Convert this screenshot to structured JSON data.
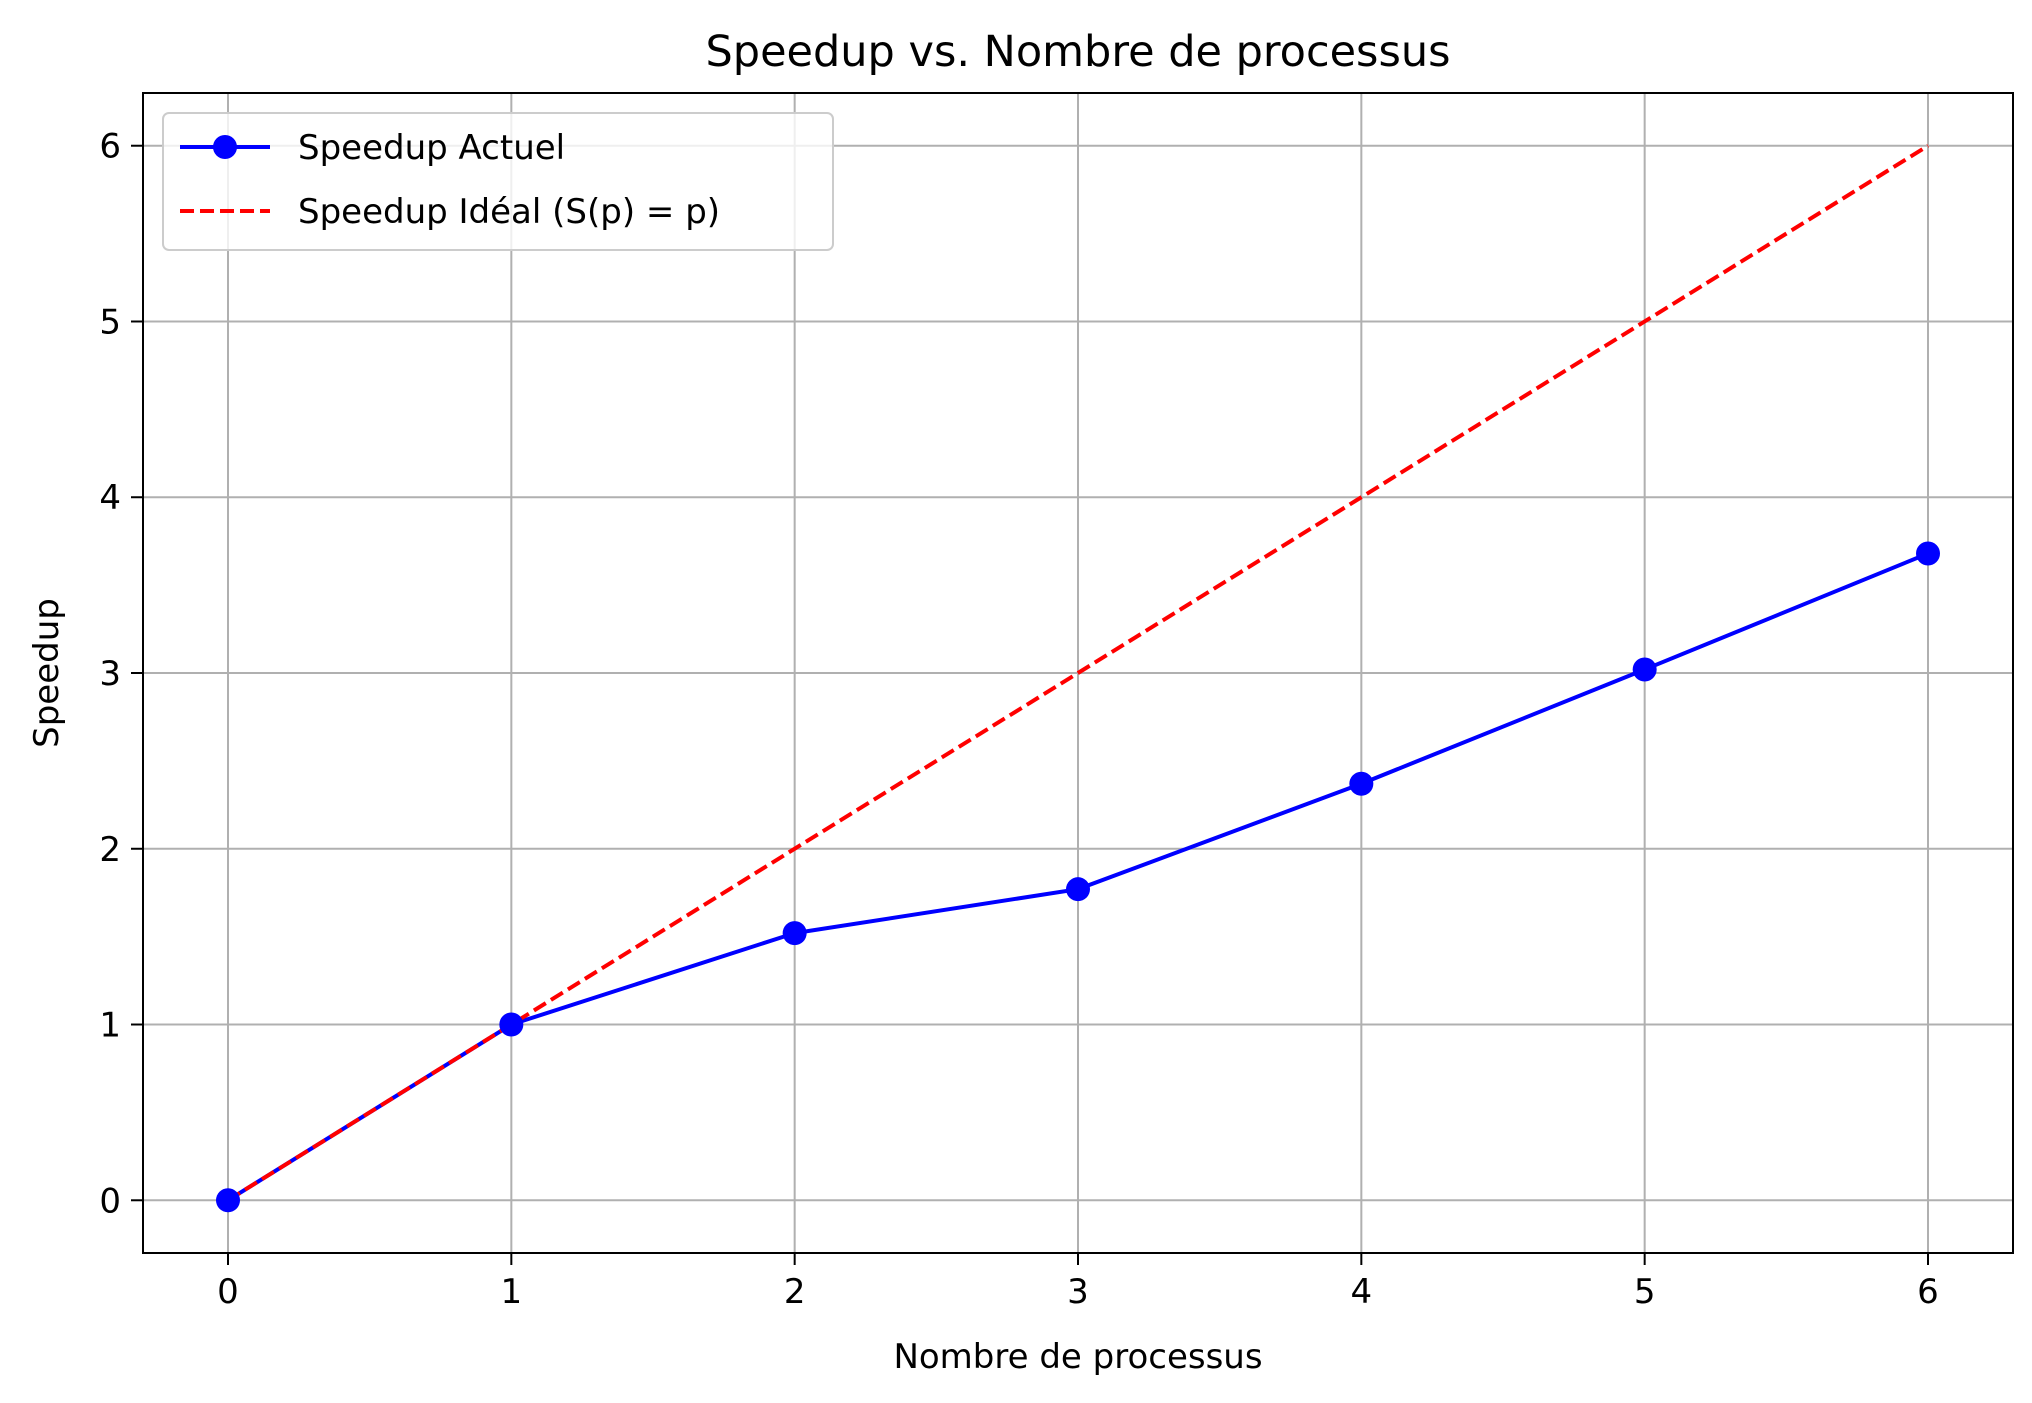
{
  "chart_data": {
    "type": "line",
    "title": "Speedup vs. Nombre de processus",
    "xlabel": "Nombre de processus",
    "ylabel": "Speedup",
    "xlim": [
      -0.3,
      6.3
    ],
    "ylim": [
      -0.3,
      6.3
    ],
    "xticks": [
      0,
      1,
      2,
      3,
      4,
      5,
      6
    ],
    "yticks": [
      0,
      1,
      2,
      3,
      4,
      5,
      6
    ],
    "grid": true,
    "legend_position": "top-left",
    "series": [
      {
        "name": "Speedup Actuel",
        "style": "solid-markers",
        "color": "#0000ff",
        "x": [
          0,
          1,
          2,
          3,
          4,
          5,
          6
        ],
        "y": [
          0,
          1.0,
          1.52,
          1.77,
          2.37,
          3.02,
          3.68
        ]
      },
      {
        "name": "Speedup Idéal (S(p) = p)",
        "style": "dashed",
        "color": "#ff0000",
        "x": [
          0,
          1,
          2,
          3,
          4,
          5,
          6
        ],
        "y": [
          0,
          1,
          2,
          3,
          4,
          5,
          6
        ]
      }
    ]
  }
}
